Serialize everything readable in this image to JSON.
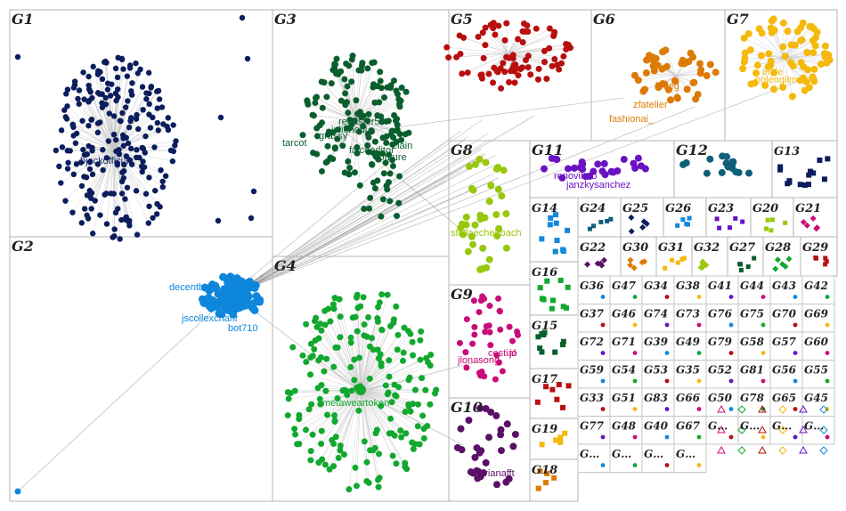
{
  "groups": [
    {
      "id": "g1",
      "label": "G1",
      "color": "#0b1d5c"
    },
    {
      "id": "g2",
      "label": "G2",
      "color": "#0e86dc"
    },
    {
      "id": "g3",
      "label": "G3",
      "color": "#0a5e2e"
    },
    {
      "id": "g4",
      "label": "G4",
      "color": "#12a82f"
    },
    {
      "id": "g5",
      "label": "G5",
      "color": "#b80e0e"
    },
    {
      "id": "g6",
      "label": "G6",
      "color": "#dd7a06"
    },
    {
      "id": "g7",
      "label": "G7",
      "color": "#f5b90c"
    },
    {
      "id": "g8",
      "label": "G8",
      "color": "#97c80c"
    },
    {
      "id": "g9",
      "label": "G9",
      "color": "#c80d79"
    },
    {
      "id": "g10",
      "label": "G10",
      "color": "#5a1066"
    },
    {
      "id": "g11",
      "label": "G11",
      "color": "#6a12c2"
    },
    {
      "id": "g12",
      "label": "G12",
      "color": "#0e5f78"
    },
    {
      "id": "g13",
      "label": "G13",
      "color": "#0b1d5c"
    },
    {
      "id": "g14",
      "label": "G14",
      "color": "#1188dd"
    },
    {
      "id": "g15",
      "label": "G15",
      "color": "#0a5e2e"
    },
    {
      "id": "g16",
      "label": "G16",
      "color": "#12a82f"
    },
    {
      "id": "g17",
      "label": "G17",
      "color": "#b80e0e"
    },
    {
      "id": "g18",
      "label": "G18",
      "color": "#dd7a06"
    },
    {
      "id": "g19",
      "label": "G19",
      "color": "#f5b90c"
    },
    {
      "id": "g20",
      "label": "G20",
      "color": "#97c80c"
    },
    {
      "id": "g21",
      "label": "G21",
      "color": "#c80d79"
    },
    {
      "id": "g22",
      "label": "G22",
      "color": "#5a1066"
    },
    {
      "id": "g23",
      "label": "G23",
      "color": "#6a12c2"
    },
    {
      "id": "g24",
      "label": "G24",
      "color": "#0e5f78"
    },
    {
      "id": "g25",
      "label": "G25",
      "color": "#0b1d5c"
    },
    {
      "id": "g26",
      "label": "G26",
      "color": "#1188dd"
    },
    {
      "id": "g27",
      "label": "G27",
      "color": "#0a5e2e"
    },
    {
      "id": "g28",
      "label": "G28",
      "color": "#12a82f"
    },
    {
      "id": "g29",
      "label": "G29",
      "color": "#b80e0e"
    },
    {
      "id": "g30",
      "label": "G30",
      "color": "#dd7a06"
    },
    {
      "id": "g31",
      "label": "G31",
      "color": "#f5b90c"
    },
    {
      "id": "g32",
      "label": "G32",
      "color": "#97c80c"
    }
  ],
  "small_groups": [
    "G36",
    "G47",
    "G34",
    "G38",
    "G41",
    "G44",
    "G43",
    "G42",
    "G37",
    "G46",
    "G74",
    "G73",
    "G76",
    "G75",
    "G70",
    "G69",
    "G72",
    "G71",
    "G39",
    "G49",
    "G79",
    "G58",
    "G57",
    "G60",
    "G59",
    "G54",
    "G53",
    "G35",
    "G52",
    "G81",
    "G56",
    "G55",
    "G33",
    "G51",
    "G83",
    "G66",
    "G50",
    "G78",
    "G65",
    "G45",
    "G77",
    "G48",
    "G40",
    "G67",
    "G…",
    "G…",
    "G…",
    "G…",
    "G…",
    "G…",
    "G…",
    "G…"
  ],
  "node_labels": {
    "g1": [
      "bjockofficial"
    ],
    "g2": [
      "decentbob",
      "jscollexcharlr",
      "bot710"
    ],
    "g3": [
      "reedster59",
      "julienodi",
      "grassy",
      "tarcot",
      "falcoeditor",
      "couture",
      "elain"
    ],
    "g4": [
      "metaweartoken"
    ],
    "g6": [
      "zfatelier",
      "fashionai_",
      "lotteg"
    ],
    "g7": [
      "nglengilmore",
      "enile"
    ],
    "g8": [
      "stellaechenbach"
    ],
    "g9": [
      "jlonasong",
      "cestial",
      "jo"
    ],
    "g10": [
      "adrianafft"
    ],
    "g11": [
      "renovihub",
      "janzkysanchez"
    ]
  }
}
